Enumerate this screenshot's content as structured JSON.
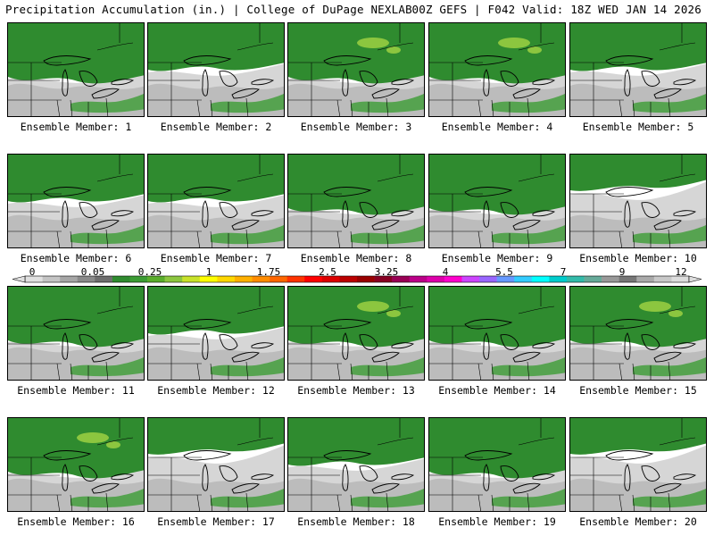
{
  "header": {
    "left": "Precipitation Accumulation (in.) | College of DuPage NEXLAB",
    "right": "00Z GEFS | F042 Valid: 18Z WED JAN 14 2026"
  },
  "colors": {
    "land_white": "#ffffff",
    "light_gray": "#d6d6d6",
    "mid_gray": "#a8a8a8",
    "dark_gray": "#7c7c7c",
    "dark_green": "#2f8b2f",
    "mid_green": "#3c9c34",
    "light_green": "#8cc63f",
    "lines": "#000000"
  },
  "panels": [
    {
      "label": "Ensemble Member: 1",
      "coverage": "high"
    },
    {
      "label": "Ensemble Member: 2",
      "coverage": "medium"
    },
    {
      "label": "Ensemble Member: 3",
      "coverage": "high",
      "light_green_patch": true
    },
    {
      "label": "Ensemble Member: 4",
      "coverage": "high",
      "light_green_patch": true
    },
    {
      "label": "Ensemble Member: 5",
      "coverage": "medium"
    },
    {
      "label": "Ensemble Member: 6",
      "coverage": "medium"
    },
    {
      "label": "Ensemble Member: 7",
      "coverage": "medium"
    },
    {
      "label": "Ensemble Member: 8",
      "coverage": "high"
    },
    {
      "label": "Ensemble Member: 9",
      "coverage": "high"
    },
    {
      "label": "Ensemble Member: 10",
      "coverage": "low"
    },
    {
      "label": "Ensemble Member: 11",
      "coverage": "high"
    },
    {
      "label": "Ensemble Member: 12",
      "coverage": "medium"
    },
    {
      "label": "Ensemble Member: 13",
      "coverage": "high",
      "light_green_patch": true
    },
    {
      "label": "Ensemble Member: 14",
      "coverage": "high"
    },
    {
      "label": "Ensemble Member: 15",
      "coverage": "high",
      "light_green_patch": true
    },
    {
      "label": "Ensemble Member: 16",
      "coverage": "high",
      "light_green_patch": true
    },
    {
      "label": "Ensemble Member: 17",
      "coverage": "low"
    },
    {
      "label": "Ensemble Member: 18",
      "coverage": "medium"
    },
    {
      "label": "Ensemble Member: 19",
      "coverage": "high"
    },
    {
      "label": "Ensemble Member: 20",
      "coverage": "low"
    }
  ],
  "colorbar": {
    "ticks": [
      "0",
      "0.05",
      "0.25",
      "1",
      "1.75",
      "2.5",
      "3.25",
      "4",
      "5.5",
      "7",
      "9",
      "12"
    ],
    "colors": [
      "#e0e0e0",
      "#c4c4c4",
      "#a6a6a6",
      "#8a8a8a",
      "#6e6e6e",
      "#2f8b2f",
      "#3c9c34",
      "#5aad2c",
      "#8cc63f",
      "#c8e22a",
      "#ffff00",
      "#ffd700",
      "#ffb000",
      "#ff8c00",
      "#ff6600",
      "#ff3300",
      "#ff0000",
      "#dd0000",
      "#bb0000",
      "#990000",
      "#880022",
      "#990055",
      "#bb0088",
      "#dd00aa",
      "#ff00cc",
      "#cc44ff",
      "#9966ff",
      "#6699ff",
      "#33ccff",
      "#00ffff",
      "#00cccc",
      "#33bbaa",
      "#66aa99",
      "#999999",
      "#777777",
      "#aaaaaa",
      "#c8c8c8",
      "#dddddd"
    ]
  }
}
